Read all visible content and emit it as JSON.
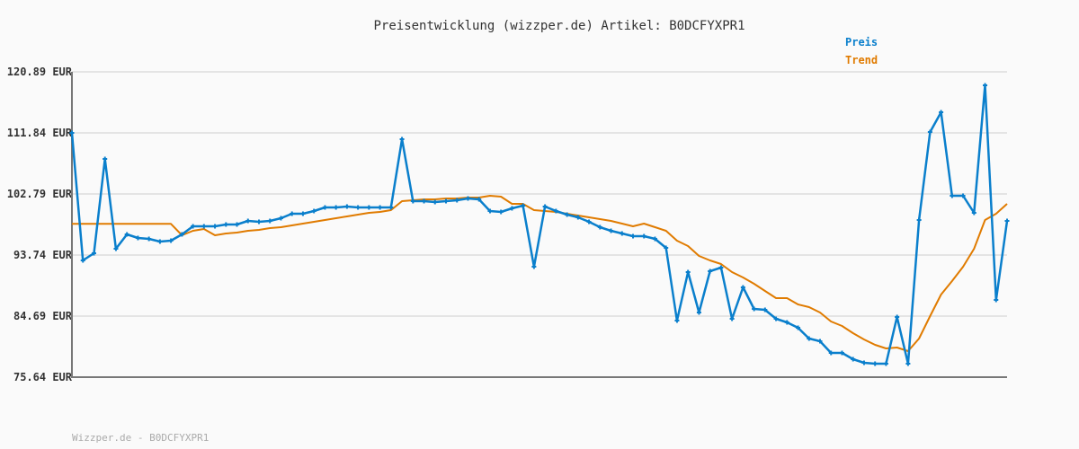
{
  "chart_data": {
    "type": "line",
    "title": "Preisentwicklung (wizzper.de) Artikel: B0DCFYXPR1",
    "xlabel": "",
    "ylabel": "",
    "ylim": [
      75.64,
      120.89
    ],
    "yticks": [
      "75.64 EUR",
      "84.69 EUR",
      "93.74 EUR",
      "102.79 EUR",
      "111.84 EUR",
      "120.89 EUR"
    ],
    "ytick_values": [
      75.64,
      84.69,
      93.74,
      102.79,
      111.84,
      120.89
    ],
    "grid": true,
    "legend_placement": "top-right",
    "series": [
      {
        "name": "Preis",
        "color": "#0a7fcc",
        "markers": true,
        "values": [
          111.84,
          92.94,
          94.01,
          107.98,
          94.67,
          96.8,
          96.27,
          96.13,
          95.74,
          95.87,
          96.8,
          98.0,
          98.0,
          98.0,
          98.26,
          98.26,
          98.8,
          98.67,
          98.8,
          99.2,
          99.86,
          99.86,
          100.26,
          100.79,
          100.79,
          100.93,
          100.79,
          100.79,
          100.79,
          100.79,
          110.91,
          101.73,
          101.73,
          101.59,
          101.73,
          101.86,
          102.12,
          101.99,
          100.26,
          100.13,
          100.66,
          101.06,
          92.01,
          100.93,
          100.26,
          99.73,
          99.33,
          98.67,
          97.87,
          97.33,
          96.93,
          96.53,
          96.53,
          96.13,
          94.8,
          84.02,
          91.21,
          85.22,
          91.34,
          91.88,
          84.29,
          88.95,
          85.75,
          85.62,
          84.29,
          83.76,
          82.96,
          81.36,
          80.96,
          79.23,
          79.23,
          78.3,
          77.77,
          77.64,
          77.64,
          84.56,
          77.64,
          98.93,
          111.97,
          114.9,
          102.52,
          102.52,
          99.99,
          118.89,
          87.09,
          98.8
        ]
      },
      {
        "name": "Trend",
        "color": "#e07b00",
        "markers": false,
        "values": [
          98.36,
          98.36,
          98.36,
          98.36,
          98.36,
          98.36,
          98.36,
          98.36,
          98.36,
          98.36,
          96.67,
          97.33,
          97.6,
          96.67,
          96.93,
          97.07,
          97.33,
          97.47,
          97.73,
          97.87,
          98.13,
          98.4,
          98.67,
          98.93,
          99.2,
          99.46,
          99.73,
          99.99,
          100.13,
          100.39,
          101.73,
          101.86,
          101.99,
          101.99,
          102.12,
          102.12,
          102.26,
          102.26,
          102.52,
          102.39,
          101.33,
          101.33,
          100.39,
          100.26,
          100.13,
          99.86,
          99.6,
          99.33,
          99.06,
          98.8,
          98.4,
          98.0,
          98.4,
          97.87,
          97.33,
          95.87,
          95.07,
          93.61,
          92.94,
          92.41,
          91.21,
          90.41,
          89.48,
          88.42,
          87.35,
          87.35,
          86.42,
          86.02,
          85.22,
          83.89,
          83.22,
          82.16,
          81.23,
          80.43,
          79.9,
          80.03,
          79.5,
          81.36,
          84.69,
          87.88,
          89.88,
          92.01,
          94.67,
          98.93,
          99.86,
          101.33
        ]
      }
    ]
  },
  "footer": "Wizzper.de - B0DCFYXPR1"
}
